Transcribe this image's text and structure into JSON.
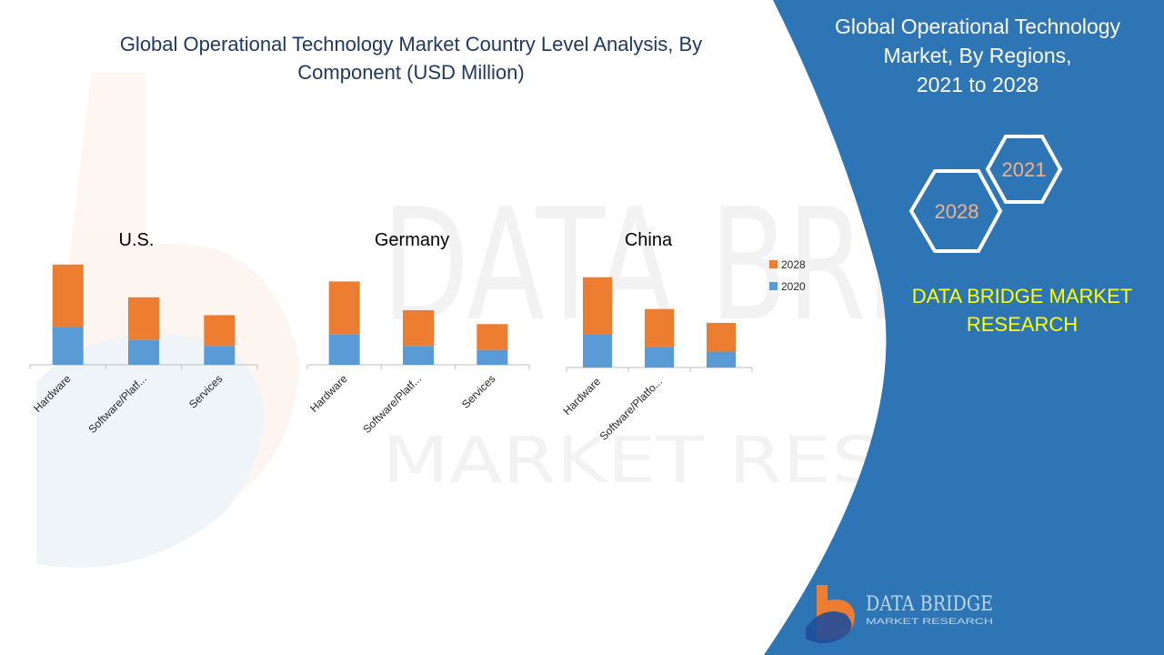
{
  "main_title": {
    "line1": "Global Operational Technology Market Country Level Analysis, By",
    "line2": "Component (USD Million)"
  },
  "side_panel": {
    "title_line1": "Global Operational Technology",
    "title_line2": "Market, By Regions,",
    "title_line3": "2021 to 2028",
    "hex_front": "2028",
    "hex_back": "2021",
    "brand_line1": "DATA BRIDGE MARKET",
    "brand_line2": "RESEARCH"
  },
  "logo": {
    "name": "DATA BRIDGE",
    "sub": "MARKET RESEARCH"
  },
  "watermark": {
    "top": "DATA BRIDGE",
    "bottom": "MARKET RESEARCH"
  },
  "colors": {
    "series_2028": "#ED7D31",
    "series_2020": "#5B9BD5",
    "panel_blue": "#2E75B6",
    "title_blue": "#1F3864",
    "brand_yellow": "#FFFF00",
    "hex_text": "#F4B183"
  },
  "chart_data": [
    {
      "type": "bar",
      "stacked": true,
      "title": "U.S.",
      "categories": [
        "Hardware",
        "Software/Platf...",
        "Services"
      ],
      "series": [
        {
          "name": "2020",
          "values": [
            38,
            25,
            19
          ]
        },
        {
          "name": "2028",
          "values": [
            63,
            43,
            31
          ]
        }
      ],
      "ylim": [
        0,
        110
      ],
      "grid": false
    },
    {
      "type": "bar",
      "stacked": true,
      "title": "Germany",
      "categories": [
        "Hardware",
        "Software/Platf...",
        "Services"
      ],
      "series": [
        {
          "name": "2020",
          "values": [
            31,
            19,
            15
          ]
        },
        {
          "name": "2028",
          "values": [
            53,
            36,
            26
          ]
        }
      ],
      "ylim": [
        0,
        110
      ],
      "grid": false
    },
    {
      "type": "bar",
      "stacked": true,
      "title": "China",
      "categories": [
        "Hardware",
        "Software/Platfo...",
        ""
      ],
      "series": [
        {
          "name": "2020",
          "values": [
            33,
            21,
            16
          ]
        },
        {
          "name": "2028",
          "values": [
            58,
            38,
            29
          ]
        }
      ],
      "ylim": [
        0,
        110
      ],
      "grid": false,
      "legend": {
        "position": "right",
        "entries": [
          "2028",
          "2020"
        ]
      }
    }
  ]
}
